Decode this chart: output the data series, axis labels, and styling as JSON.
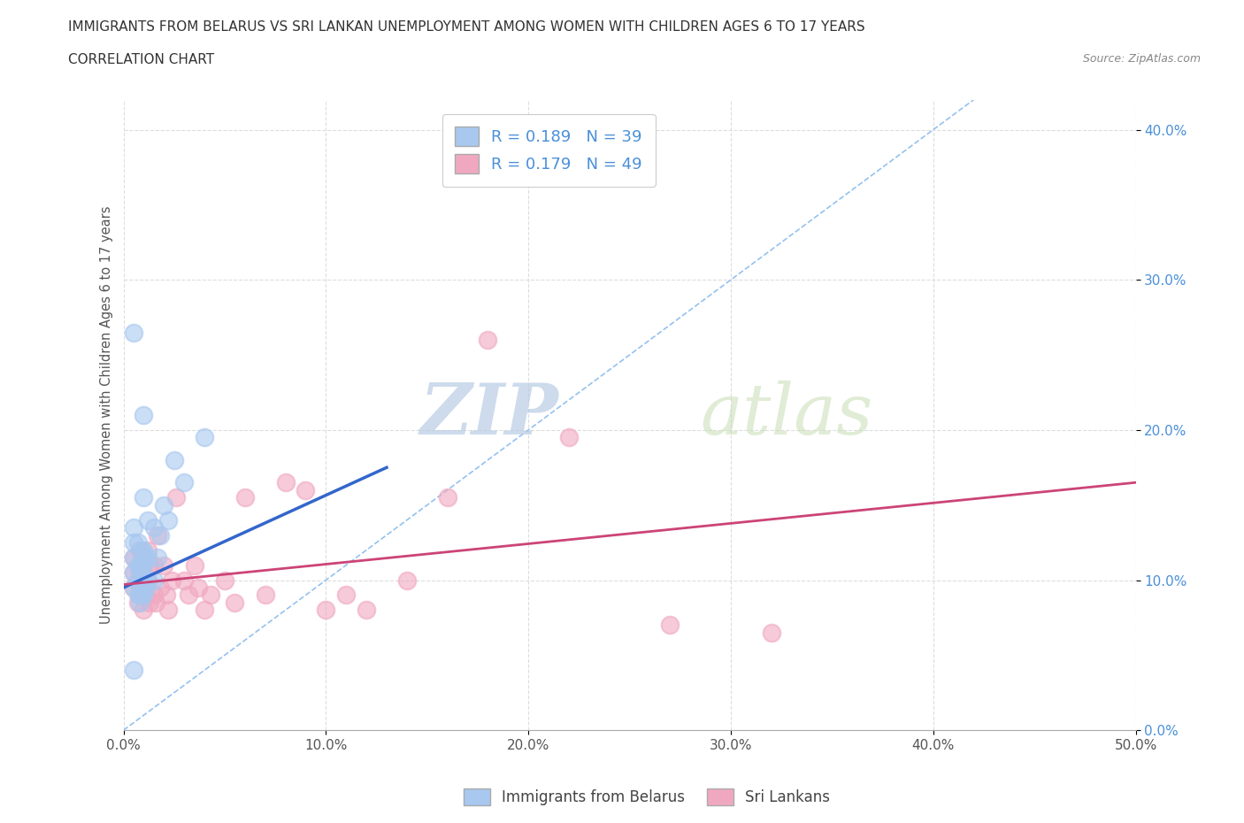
{
  "title": "IMMIGRANTS FROM BELARUS VS SRI LANKAN UNEMPLOYMENT AMONG WOMEN WITH CHILDREN AGES 6 TO 17 YEARS",
  "subtitle": "CORRELATION CHART",
  "source": "Source: ZipAtlas.com",
  "ylabel": "Unemployment Among Women with Children Ages 6 to 17 years",
  "xlim": [
    0.0,
    0.5
  ],
  "ylim": [
    0.0,
    0.42
  ],
  "x_ticks": [
    0.0,
    0.1,
    0.2,
    0.3,
    0.4,
    0.5
  ],
  "x_tick_labels": [
    "0.0%",
    "10.0%",
    "20.0%",
    "30.0%",
    "40.0%",
    "50.0%"
  ],
  "y_ticks": [
    0.0,
    0.1,
    0.2,
    0.3,
    0.4
  ],
  "y_tick_labels": [
    "0.0%",
    "10.0%",
    "20.0%",
    "30.0%",
    "40.0%"
  ],
  "blue_R": 0.189,
  "blue_N": 39,
  "pink_R": 0.179,
  "pink_N": 49,
  "blue_color": "#a8c8f0",
  "pink_color": "#f0a8c0",
  "blue_line_color": "#3366cc",
  "pink_line_color": "#cc4477",
  "diagonal_color": "#a8c8f0",
  "watermark_zip": "ZIP",
  "watermark_atlas": "atlas",
  "legend_blue_label": "Immigrants from Belarus",
  "legend_pink_label": "Sri Lankans",
  "blue_scatter_x": [
    0.005,
    0.005,
    0.005,
    0.005,
    0.005,
    0.007,
    0.007,
    0.007,
    0.007,
    0.008,
    0.008,
    0.008,
    0.009,
    0.009,
    0.009,
    0.009,
    0.01,
    0.01,
    0.01,
    0.01,
    0.01,
    0.011,
    0.011,
    0.011,
    0.012,
    0.012,
    0.012,
    0.015,
    0.015,
    0.017,
    0.018,
    0.02,
    0.022,
    0.025,
    0.03,
    0.04,
    0.005,
    0.005,
    0.01
  ],
  "blue_scatter_y": [
    0.095,
    0.105,
    0.115,
    0.125,
    0.135,
    0.09,
    0.1,
    0.11,
    0.125,
    0.085,
    0.095,
    0.11,
    0.09,
    0.1,
    0.11,
    0.12,
    0.09,
    0.1,
    0.11,
    0.12,
    0.155,
    0.095,
    0.1,
    0.115,
    0.1,
    0.115,
    0.14,
    0.1,
    0.135,
    0.115,
    0.13,
    0.15,
    0.14,
    0.18,
    0.165,
    0.195,
    0.265,
    0.04,
    0.21
  ],
  "pink_scatter_x": [
    0.005,
    0.005,
    0.005,
    0.007,
    0.007,
    0.008,
    0.008,
    0.008,
    0.009,
    0.009,
    0.01,
    0.01,
    0.01,
    0.011,
    0.012,
    0.012,
    0.013,
    0.013,
    0.015,
    0.015,
    0.016,
    0.017,
    0.018,
    0.02,
    0.021,
    0.022,
    0.024,
    0.026,
    0.03,
    0.032,
    0.035,
    0.037,
    0.04,
    0.043,
    0.05,
    0.055,
    0.06,
    0.07,
    0.08,
    0.09,
    0.1,
    0.11,
    0.12,
    0.14,
    0.16,
    0.18,
    0.22,
    0.27,
    0.32
  ],
  "pink_scatter_y": [
    0.095,
    0.105,
    0.115,
    0.085,
    0.1,
    0.09,
    0.105,
    0.12,
    0.095,
    0.11,
    0.08,
    0.095,
    0.11,
    0.09,
    0.1,
    0.12,
    0.085,
    0.11,
    0.09,
    0.11,
    0.085,
    0.13,
    0.095,
    0.11,
    0.09,
    0.08,
    0.1,
    0.155,
    0.1,
    0.09,
    0.11,
    0.095,
    0.08,
    0.09,
    0.1,
    0.085,
    0.155,
    0.09,
    0.165,
    0.16,
    0.08,
    0.09,
    0.08,
    0.1,
    0.155,
    0.26,
    0.195,
    0.07,
    0.065
  ],
  "background_color": "#ffffff",
  "grid_color": "#dddddd"
}
